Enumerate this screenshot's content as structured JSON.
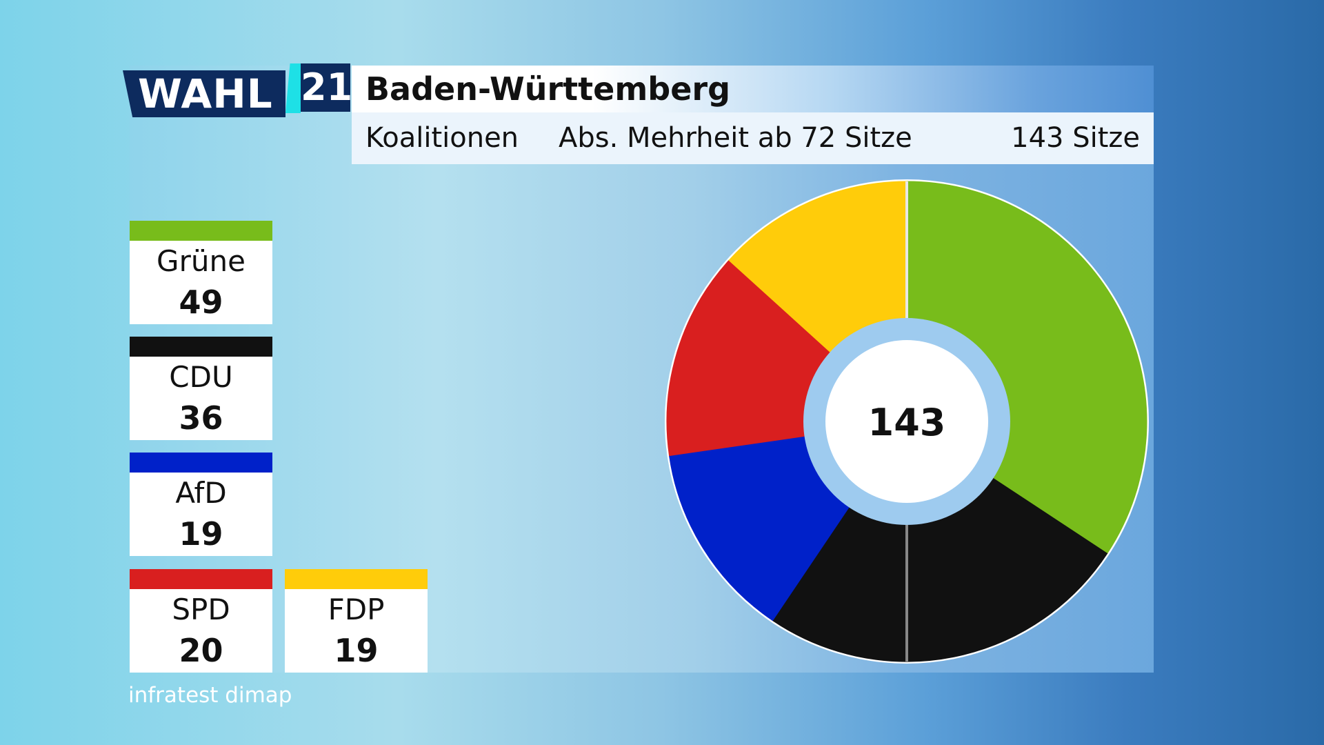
{
  "header": {
    "logo_text": "WAHL",
    "logo_year": "21",
    "title": "Baden-Württemberg",
    "subtitle_left": "Koalitionen",
    "subtitle_mid": "Abs. Mehrheit ab 72 Sitze",
    "subtitle_right": "143 Sitze"
  },
  "colors": {
    "gruene": "#78bc1b",
    "cdu": "#111111",
    "afd": "#0021c9",
    "spd": "#d91f1f",
    "fdp": "#ffcc0a"
  },
  "source": "infratest dimap",
  "chart_data": {
    "type": "pie",
    "total_label": "143",
    "total": 143,
    "slices": [
      {
        "name": "Grüne",
        "value": 49,
        "color": "#78bc1b"
      },
      {
        "name": "CDU",
        "value": 36,
        "color": "#111111"
      },
      {
        "name": "AfD",
        "value": 19,
        "color": "#0021c9"
      },
      {
        "name": "SPD",
        "value": 20,
        "color": "#d91f1f"
      },
      {
        "name": "FDP",
        "value": 19,
        "color": "#ffcc0a"
      }
    ]
  }
}
